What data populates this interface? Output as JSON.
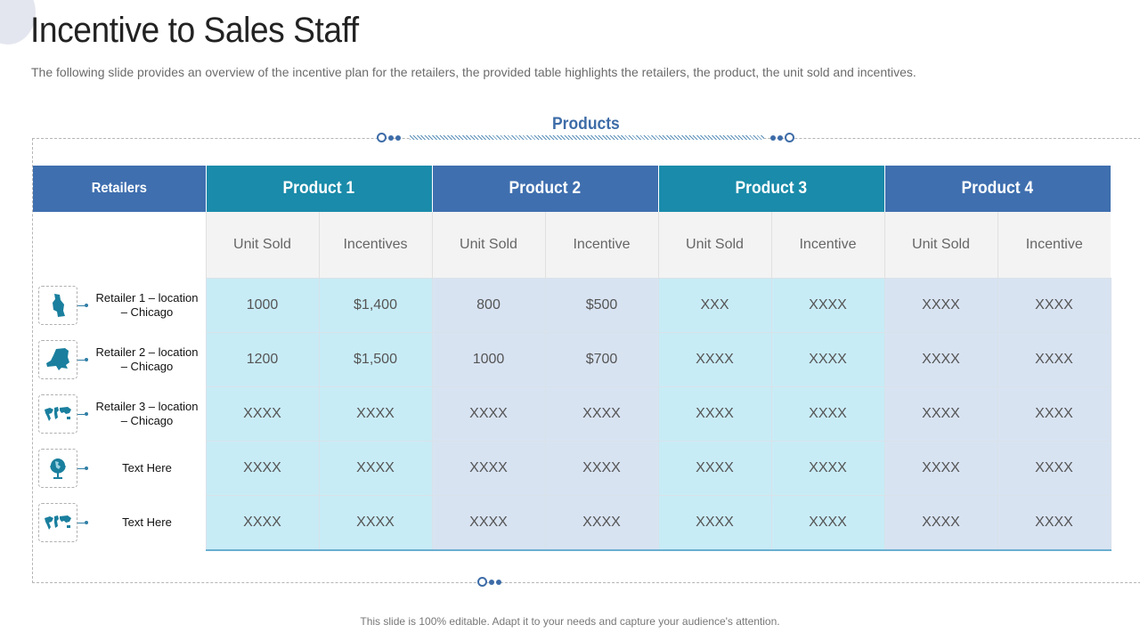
{
  "title": "Incentive to Sales Staff",
  "subtitle": "The following slide provides an overview of the incentive plan for the retailers, the provided table highlights the retailers, the product, the unit sold and incentives.",
  "products_label": "Products",
  "table": {
    "retailers_header": "Retailers",
    "products": [
      "Product 1",
      "Product 2",
      "Product 3",
      "Product 4"
    ],
    "subheaders": [
      "Unit Sold",
      "Incentives",
      "Unit Sold",
      "Incentive",
      "Unit Sold",
      "Incentive",
      "Unit Sold",
      "Incentive"
    ],
    "rows": [
      {
        "label": "Retailer 1 – location – Chicago",
        "icon": "chicago-map-icon",
        "values": [
          "1000",
          "$1,400",
          "800",
          "$500",
          "XXX",
          "XXXX",
          "XXXX",
          "XXXX"
        ]
      },
      {
        "label": "Retailer 2 – location – Chicago",
        "icon": "new-york-map-icon",
        "values": [
          "1200",
          "$1,500",
          "1000",
          "$700",
          "XXXX",
          "XXXX",
          "XXXX",
          "XXXX"
        ]
      },
      {
        "label": "Retailer 3 – location – Chicago",
        "icon": "world-map-icon",
        "values": [
          "XXXX",
          "XXXX",
          "XXXX",
          "XXXX",
          "XXXX",
          "XXXX",
          "XXXX",
          "XXXX"
        ]
      },
      {
        "label": "Text Here",
        "icon": "globe-icon",
        "values": [
          "XXXX",
          "XXXX",
          "XXXX",
          "XXXX",
          "XXXX",
          "XXXX",
          "XXXX",
          "XXXX"
        ]
      },
      {
        "label": "Text Here",
        "icon": "world-map-icon",
        "values": [
          "XXXX",
          "XXXX",
          "XXXX",
          "XXXX",
          "XXXX",
          "XXXX",
          "XXXX",
          "XXXX"
        ]
      }
    ]
  },
  "colors": {
    "teal": "#1a8baa",
    "blue": "#3f6faf",
    "light_cell": "#c8ecf6",
    "gray_cell": "#d8e3f2",
    "icon": "#1a7f9e"
  },
  "footer": "This slide is 100% editable. Adapt it to your needs and capture your audience's attention."
}
